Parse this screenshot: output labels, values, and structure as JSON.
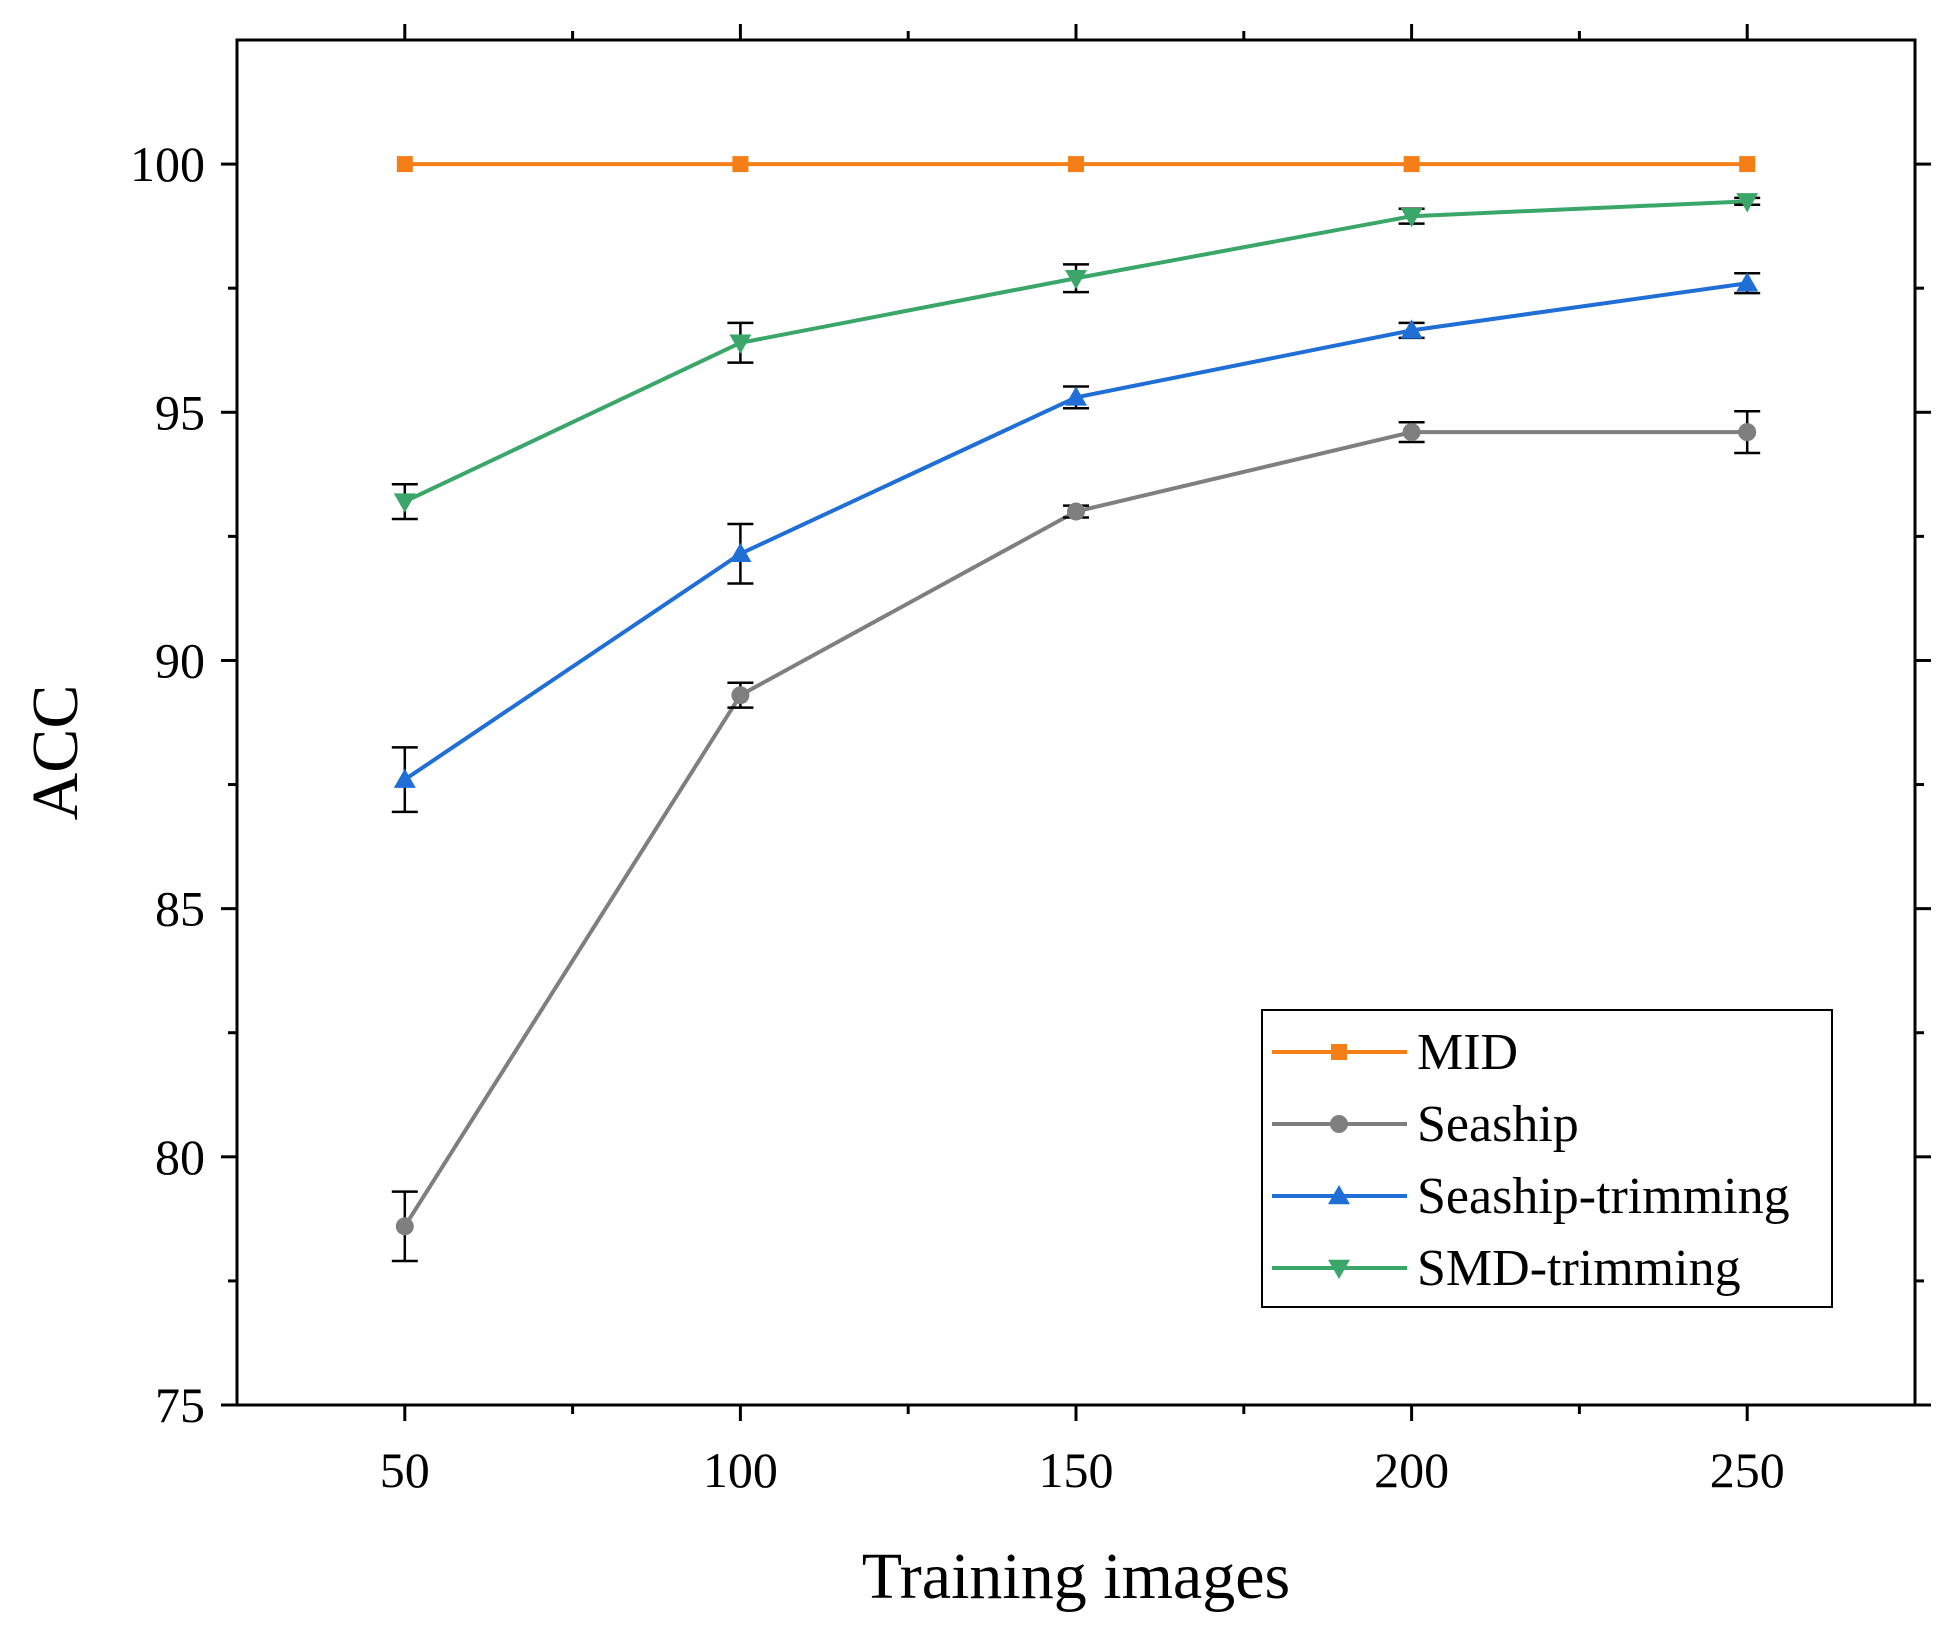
{
  "chart_data": {
    "type": "line",
    "title": "",
    "xlabel": "Training images",
    "ylabel": "ACC",
    "x": [
      50,
      100,
      150,
      200,
      250
    ],
    "xlim": [
      25,
      275
    ],
    "ylim": [
      75,
      102.5
    ],
    "xticks": [
      50,
      100,
      150,
      200,
      250
    ],
    "yticks": [
      75,
      80,
      85,
      90,
      95,
      100
    ],
    "grid": false,
    "legend_position": "bottom-right",
    "series": [
      {
        "name": "MID",
        "marker": "square",
        "color": "#f57f17",
        "values": [
          100,
          100,
          100,
          100,
          100
        ],
        "errors": [
          0,
          0,
          0,
          0,
          0
        ]
      },
      {
        "name": "Seaship",
        "marker": "circle",
        "color": "#7f7f7f",
        "values": [
          78.6,
          89.3,
          93.0,
          94.6,
          94.6
        ],
        "errors": [
          0.7,
          0.25,
          0.12,
          0.2,
          0.42
        ]
      },
      {
        "name": "Seaship-trimming",
        "marker": "triangle-up",
        "color": "#1f6fd6",
        "values": [
          87.6,
          92.15,
          95.3,
          96.65,
          97.6
        ],
        "errors": [
          0.65,
          0.6,
          0.22,
          0.15,
          0.2
        ]
      },
      {
        "name": "SMD-trimming",
        "marker": "triangle-down",
        "color": "#3aa66a",
        "values": [
          93.2,
          96.4,
          97.7,
          98.95,
          99.25
        ],
        "errors": [
          0.35,
          0.4,
          0.28,
          0.15,
          0.07
        ]
      }
    ]
  }
}
